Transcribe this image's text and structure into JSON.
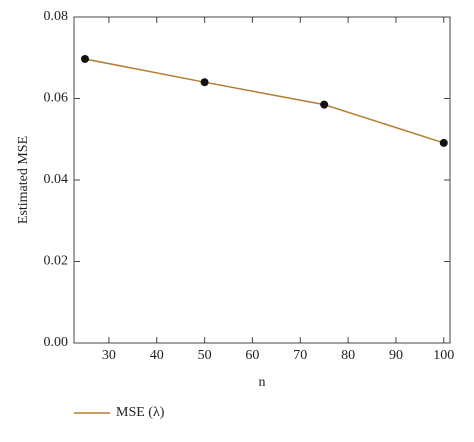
{
  "chart_data": {
    "type": "line",
    "xlabel": "n",
    "ylabel": "Estimated MSE",
    "x": [
      25,
      50,
      75,
      100
    ],
    "series": [
      {
        "name": "MSE (λ)",
        "color": "#b27d2e",
        "values": [
          0.0697,
          0.064,
          0.0585,
          0.0491
        ]
      }
    ],
    "xlim": [
      22.7,
      101.3
    ],
    "xticks": [
      30,
      40,
      50,
      60,
      70,
      80,
      90,
      100
    ],
    "ylim": [
      0,
      0.08
    ],
    "yticks": [
      {
        "value": 0,
        "label": "0.00"
      },
      0.02,
      0.04,
      0.06,
      0.08
    ],
    "marker_color": "#111111",
    "legend": "bottom-left"
  }
}
